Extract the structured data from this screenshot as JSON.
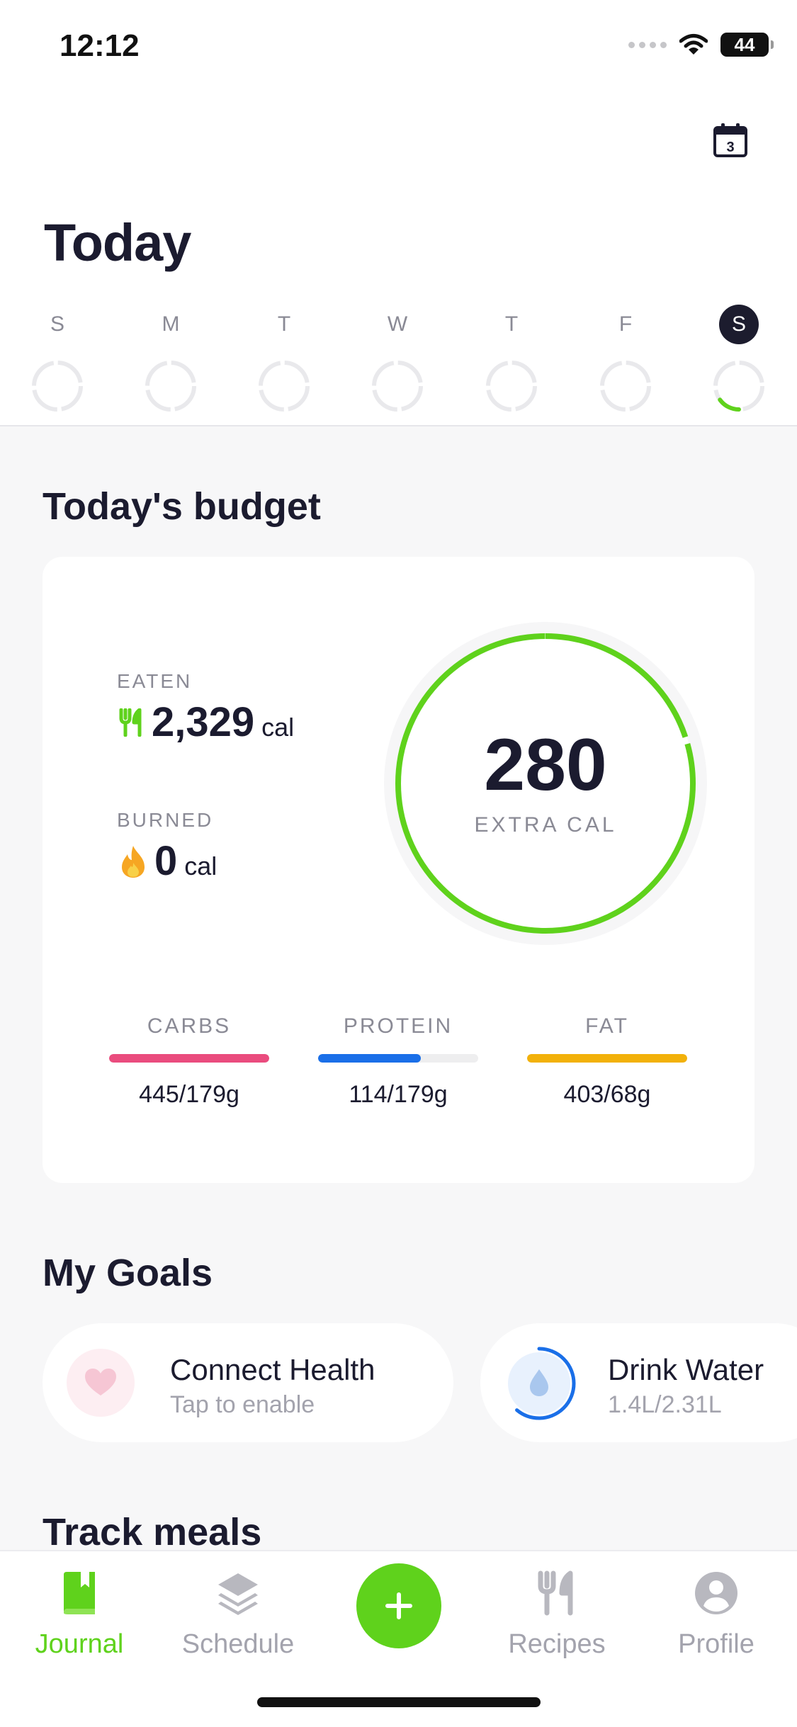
{
  "status_bar": {
    "time": "12:12",
    "battery": "44"
  },
  "header": {
    "calendar_day": "3",
    "title": "Today"
  },
  "week": [
    {
      "letter": "S",
      "progress": 0,
      "active": false
    },
    {
      "letter": "M",
      "progress": 0,
      "active": false
    },
    {
      "letter": "T",
      "progress": 0,
      "active": false
    },
    {
      "letter": "W",
      "progress": 0,
      "active": false
    },
    {
      "letter": "T",
      "progress": 0,
      "active": false
    },
    {
      "letter": "F",
      "progress": 0,
      "active": false
    },
    {
      "letter": "S",
      "progress": 0.15,
      "active": true
    }
  ],
  "budget": {
    "title": "Today's budget",
    "eaten": {
      "label": "EATEN",
      "value": "2,329",
      "unit": "cal"
    },
    "burned": {
      "label": "BURNED",
      "value": "0",
      "unit": "cal"
    },
    "ring": {
      "value": "280",
      "label": "EXTRA CAL",
      "color": "#5fd21c"
    },
    "macros": [
      {
        "label": "CARBS",
        "value": "445/179g",
        "progress": 1.0,
        "color": "#ea4c7e"
      },
      {
        "label": "PROTEIN",
        "value": "114/179g",
        "progress": 0.64,
        "color": "#1a6fe8"
      },
      {
        "label": "FAT",
        "value": "403/68g",
        "progress": 1.0,
        "color": "#f2b10a"
      }
    ]
  },
  "goals": {
    "title": "My Goals",
    "items": [
      {
        "title": "Connect Health",
        "subtitle": "Tap to enable",
        "icon": "heart-icon"
      },
      {
        "title": "Drink Water",
        "subtitle": "1.4L/2.31L",
        "icon": "water-drop-icon",
        "progress": 0.61
      }
    ]
  },
  "track": {
    "title": "Track meals"
  },
  "tabs": [
    {
      "label": "Journal",
      "icon": "journal-icon",
      "active": true
    },
    {
      "label": "Schedule",
      "icon": "layers-icon",
      "active": false
    },
    {
      "label": "Recipes",
      "icon": "fork-knife-icon",
      "active": false
    },
    {
      "label": "Profile",
      "icon": "profile-icon",
      "active": false
    }
  ],
  "colors": {
    "accent": "#5fd21c",
    "text": "#1b1b2f",
    "muted": "#8a8a95"
  }
}
